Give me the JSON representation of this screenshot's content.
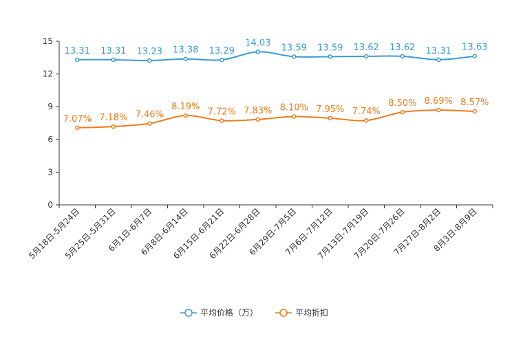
{
  "chart_data": {
    "type": "line",
    "categories": [
      "5月18日-5月24日",
      "5月25日-5月31日",
      "6月1日-6月7日",
      "6月8日-6月14日",
      "6月15日-6月21日",
      "6月22日-6月28日",
      "6月29日-7月5日",
      "7月6日-7月12日",
      "7月13日-7月19日",
      "7月20日-7月26日",
      "7月27日-8月2日",
      "8月3日-8月9日"
    ],
    "ylim": [
      0,
      15
    ],
    "yticks": [
      0,
      3,
      6,
      9,
      12,
      15
    ],
    "series": [
      {
        "name": "平均价格（万）",
        "color": "#3a9ad5",
        "values": [
          13.31,
          13.31,
          13.23,
          13.38,
          13.29,
          14.03,
          13.59,
          13.59,
          13.62,
          13.62,
          13.31,
          13.63
        ],
        "labels": [
          "13.31",
          "13.31",
          "13.23",
          "13.38",
          "13.29",
          "14.03",
          "13.59",
          "13.59",
          "13.62",
          "13.62",
          "13.31",
          "13.63"
        ]
      },
      {
        "name": "平均折扣",
        "color": "#f07a1a",
        "values": [
          7.07,
          7.18,
          7.46,
          8.19,
          7.72,
          7.83,
          8.1,
          7.95,
          7.74,
          8.5,
          8.69,
          8.57
        ],
        "labels": [
          "7.07%",
          "7.18%",
          "7.46%",
          "8.19%",
          "7.72%",
          "7.83%",
          "8.10%",
          "7.95%",
          "7.74%",
          "8.50%",
          "8.69%",
          "8.57%"
        ]
      }
    ]
  }
}
